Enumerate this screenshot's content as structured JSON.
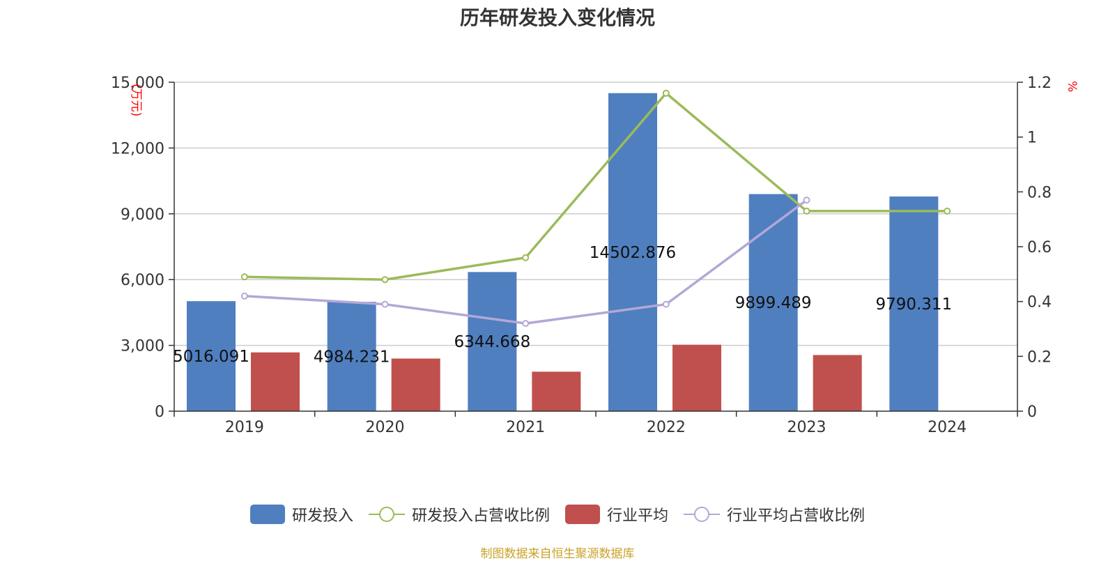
{
  "title": "历年研发投入变化情况",
  "source": "制图数据来自恒生聚源数据库",
  "legend": {
    "rd": "研发投入",
    "rd_ratio": "研发投入占营收比例",
    "industry": "行业平均",
    "industry_ratio": "行业平均占营收比例"
  },
  "colors": {
    "rd": "#4f7fbf",
    "rd_ratio": "#9bbb59",
    "industry": "#c0504d",
    "industry_ratio": "#b4a7d6",
    "unit": "#ff0000"
  },
  "chart_data": {
    "type": "bar",
    "title": "历年研发投入变化情况",
    "categories": [
      "2019",
      "2020",
      "2021",
      "2022",
      "2023",
      "2024"
    ],
    "ylabel": "(万元)",
    "y2label": "%",
    "ylim": [
      0,
      15000
    ],
    "y2lim": [
      0,
      1.2
    ],
    "yticks": [
      "0",
      "3,000",
      "6,000",
      "9,000",
      "12,000",
      "15,000"
    ],
    "y2ticks": [
      "0",
      "0.2",
      "0.4",
      "0.6",
      "0.8",
      "1",
      "1.2"
    ],
    "grid": true,
    "legend_position": "bottom",
    "series": [
      {
        "name": "研发投入",
        "type": "bar",
        "axis": "left",
        "values": [
          5016.091,
          4984.231,
          6344.668,
          14502.876,
          9899.489,
          9790.311
        ],
        "labels": [
          "5016.091",
          "4984.231",
          "6344.668",
          "14502.876",
          "9899.489",
          "9790.311"
        ]
      },
      {
        "name": "行业平均",
        "type": "bar",
        "axis": "left",
        "values": [
          2680,
          2400,
          1800,
          3030,
          2560,
          null
        ]
      },
      {
        "name": "研发投入占营收比例",
        "type": "line",
        "axis": "right",
        "values": [
          0.49,
          0.48,
          0.56,
          1.16,
          0.73,
          0.73
        ]
      },
      {
        "name": "行业平均占营收比例",
        "type": "line",
        "axis": "right",
        "values": [
          0.42,
          0.39,
          0.32,
          0.39,
          0.77,
          null
        ]
      }
    ]
  }
}
